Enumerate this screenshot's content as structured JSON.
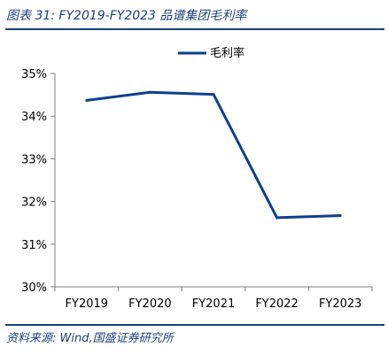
{
  "figure": {
    "title": "图表 31:  FY2019-FY2023 品谱集团毛利率",
    "source": "资料来源:  Wind,国盛证券研究所"
  },
  "colors": {
    "series": "#0e3f8c",
    "accent": "#1a3f7a",
    "axis": "#7f7f7f"
  },
  "chart_data": {
    "type": "line",
    "title": "",
    "xlabel": "",
    "ylabel": "",
    "categories": [
      "FY2019",
      "FY2020",
      "FY2021",
      "FY2022",
      "FY2023"
    ],
    "series": [
      {
        "name": "毛利率",
        "values": [
          34.37,
          34.56,
          34.51,
          31.62,
          31.67
        ]
      }
    ],
    "ylim": [
      30,
      35
    ],
    "yticks": [
      30,
      31,
      32,
      33,
      34,
      35
    ],
    "ytick_labels": [
      "30%",
      "31%",
      "32%",
      "33%",
      "34%",
      "35%"
    ],
    "grid": false,
    "legend": "top-center"
  }
}
